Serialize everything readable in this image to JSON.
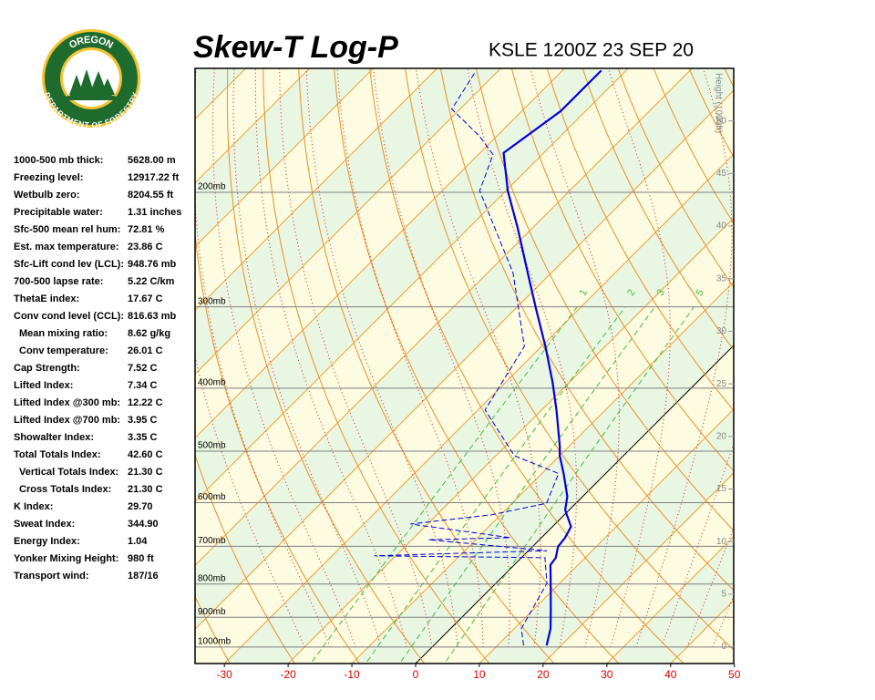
{
  "logo": {
    "top": "OREGON",
    "bottom": "DEPARTMENT OF FORESTRY"
  },
  "indices": [
    {
      "label": "1000-500 mb thick:",
      "value": "5628.00 m"
    },
    {
      "label": "Freezing level:",
      "value": "12917.22 ft"
    },
    {
      "label": "Wetbulb zero:",
      "value": "8204.55 ft"
    },
    {
      "label": "Precipitable water:",
      "value": "1.31 inches"
    },
    {
      "label": "Sfc-500 mean rel hum:",
      "value": "72.81 %"
    },
    {
      "label": "Est. max temperature:",
      "value": "23.86 C"
    },
    {
      "label": "Sfc-Lift cond lev (LCL):",
      "value": "948.76 mb"
    },
    {
      "label": "700-500 lapse rate:",
      "value": "5.22 C/km"
    },
    {
      "label": "ThetaE index:",
      "value": "17.67 C"
    },
    {
      "label": "Conv cond level (CCL):",
      "value": "816.63 mb"
    },
    {
      "label": "Mean mixing ratio:",
      "value": "8.62 g/kg",
      "indent": true
    },
    {
      "label": "Conv temperature:",
      "value": "26.01 C",
      "indent": true
    },
    {
      "label": "Cap Strength:",
      "value": "7.52 C"
    },
    {
      "label": "Lifted Index:",
      "value": "7.34 C"
    },
    {
      "label": "Lifted Index @300 mb:",
      "value": "12.22 C"
    },
    {
      "label": "Lifted Index @700 mb:",
      "value": "3.95 C"
    },
    {
      "label": "Showalter Index:",
      "value": "3.35 C"
    },
    {
      "label": "Total Totals Index:",
      "value": "42.60 C"
    },
    {
      "label": "Vertical Totals Index:",
      "value": "21.30 C",
      "indent": true
    },
    {
      "label": "Cross Totals Index:",
      "value": "21.30 C",
      "indent": true
    },
    {
      "label": "K Index:",
      "value": "29.70"
    },
    {
      "label": "Sweat Index:",
      "value": "344.90"
    },
    {
      "label": "Energy Index:",
      "value": "1.04"
    },
    {
      "label": "Yonker Mixing Height:",
      "value": "980 ft"
    },
    {
      "label": "Transport wind:",
      "value": "187/16"
    }
  ],
  "chart_data": {
    "type": "skew-t",
    "title": "Skew-T Log-P",
    "subtitle": "KSLE 1200Z 23 SEP 20",
    "xlim": [
      -34.6,
      49.9
    ],
    "xticks": [
      -30,
      -20,
      -10,
      0,
      10,
      20,
      30,
      40,
      50
    ],
    "ylim": [
      1060,
      129
    ],
    "log_y": true,
    "skew_degrees": 45,
    "yticks": [
      {
        "value": 1000,
        "label": "1000mb"
      },
      {
        "value": 900,
        "label": "900mb"
      },
      {
        "value": 800,
        "label": "800mb"
      },
      {
        "value": 700,
        "label": "700mb"
      },
      {
        "value": 600,
        "label": "600mb"
      },
      {
        "value": 500,
        "label": "500mb"
      },
      {
        "value": 400,
        "label": "400mb"
      },
      {
        "value": 300,
        "label": "300mb"
      },
      {
        "value": 200,
        "label": "200mb"
      }
    ],
    "height_label": "Height (1000ft)",
    "hlim": [
      -1.6,
      55.0
    ],
    "hticks": [
      0,
      5,
      10,
      15,
      20,
      25,
      30,
      35,
      40,
      45,
      50
    ],
    "mixing_ratio_labels": [
      1,
      2,
      3,
      5
    ],
    "mixing_ratio_label_pressure": 291,
    "series": [
      {
        "name": "Temperature",
        "color": "#0000dd",
        "pressure": [
          994,
          937,
          879,
          798,
          748,
          729,
          701,
          679,
          653,
          616,
          587,
          541,
          508,
          492,
          432,
          392,
          345,
          303,
          266,
          227,
          199,
          174,
          150,
          130
        ],
        "values": [
          17.7,
          15.7,
          12.9,
          8.6,
          5.7,
          5.4,
          4.0,
          3.7,
          2.9,
          -0.6,
          -2.4,
          -6.6,
          -10.0,
          -11.4,
          -17.7,
          -22.6,
          -29.4,
          -36.6,
          -43.7,
          -52.3,
          -59.7,
          -66.3,
          -63.9,
          -63.9
        ]
      },
      {
        "name": "Dewpoint",
        "color": "#0000dd",
        "pressure": [
          994,
          937,
          798,
          729,
          724,
          711,
          684,
          679,
          647,
          626,
          601,
          541,
          508,
          432,
          345,
          266,
          199,
          175,
          164,
          149,
          131
        ],
        "values": [
          14.1,
          11.1,
          8.0,
          3.7,
          -23.4,
          2.9,
          -17.4,
          -4.9,
          -22.7,
          -11.3,
          -4.6,
          -7.4,
          -17.1,
          -28.9,
          -32.7,
          -46.0,
          -64.1,
          -67.7,
          -72.7,
          -81.3,
          -83.4
        ]
      }
    ]
  }
}
